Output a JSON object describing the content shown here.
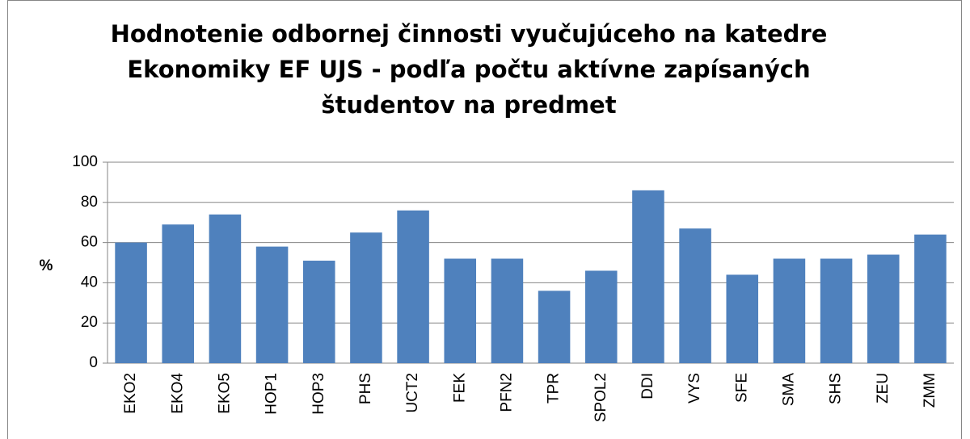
{
  "chart_data": {
    "type": "bar",
    "title": "Hodnotenie odbornej činnosti vyučujúceho na katedre Ekonomiky EF UJS - podľa počtu aktívne zapísaných študentov na predmet",
    "y_label": "%",
    "categories": [
      "EKO2",
      "EKO4",
      "EKO5",
      "HOP1",
      "HOP3",
      "PHS",
      "UCT2",
      "FEK",
      "PFN2",
      "TPR",
      "SPOL2",
      "DDI",
      "VYS",
      "SFE",
      "SMA",
      "SHS",
      "ZEU",
      "ZMM"
    ],
    "values": [
      60,
      69,
      74,
      58,
      51,
      65,
      76,
      52,
      52,
      36,
      46,
      86,
      67,
      44,
      52,
      52,
      54,
      64
    ],
    "color": "#4f81bd",
    "ylim": [
      0,
      100
    ],
    "yticks": [
      0,
      20,
      40,
      60,
      80,
      100
    ],
    "grid": true
  }
}
